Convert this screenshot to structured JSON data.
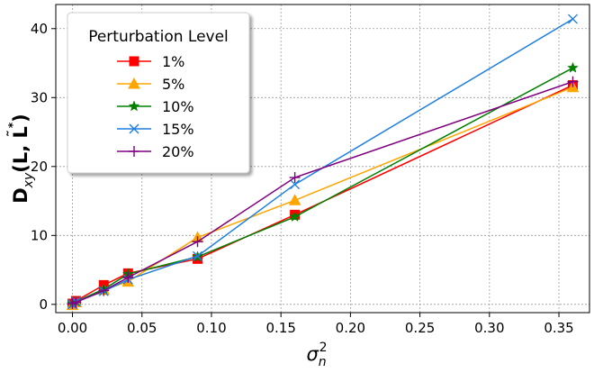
{
  "chart_data": {
    "type": "line",
    "title": "",
    "xlabel_base": "σ",
    "xlabel_sub": "n",
    "xlabel_sup": "2",
    "ylabel_parts": [
      "D",
      "xy",
      "(L, ",
      "L",
      "˜",
      "*",
      ")"
    ],
    "xlim": [
      -0.012,
      0.372
    ],
    "ylim": [
      -1.2,
      43.5
    ],
    "x_ticks": [
      0.0,
      0.05,
      0.1,
      0.15,
      0.2,
      0.25,
      0.3,
      0.35
    ],
    "x_tick_labels": [
      "0.00",
      "0.05",
      "0.10",
      "0.15",
      "0.20",
      "0.25",
      "0.30",
      "0.35"
    ],
    "y_ticks": [
      0,
      10,
      20,
      30,
      40
    ],
    "y_tick_labels": [
      "0",
      "10",
      "20",
      "30",
      "40"
    ],
    "grid": true,
    "legend": {
      "title": "Perturbation Level",
      "placement": "top-left"
    },
    "series": [
      {
        "name": "1%",
        "color": "#ff0000",
        "marker": "square",
        "x": [
          0.0,
          0.0025,
          0.0225,
          0.04,
          0.09,
          0.16,
          0.36
        ],
        "y": [
          0.1,
          0.5,
          2.8,
          4.5,
          6.6,
          13.0,
          31.8
        ]
      },
      {
        "name": "5%",
        "color": "#ffa500",
        "marker": "triangle",
        "x": [
          0.0,
          0.0025,
          0.0225,
          0.04,
          0.09,
          0.16,
          0.36
        ],
        "y": [
          -0.1,
          0.3,
          2.1,
          3.3,
          9.7,
          15.1,
          31.5
        ]
      },
      {
        "name": "10%",
        "color": "#008000",
        "marker": "star",
        "x": [
          0.0,
          0.0025,
          0.0225,
          0.04,
          0.09,
          0.16,
          0.36
        ],
        "y": [
          0.1,
          0.4,
          2.2,
          4.4,
          6.9,
          12.7,
          34.3
        ]
      },
      {
        "name": "15%",
        "color": "#1e7fe0",
        "marker": "x",
        "x": [
          0.0,
          0.0025,
          0.0225,
          0.04,
          0.09,
          0.16,
          0.36
        ],
        "y": [
          0.0,
          0.4,
          1.9,
          3.6,
          7.0,
          17.4,
          41.4
        ]
      },
      {
        "name": "20%",
        "color": "#800080",
        "marker": "plus",
        "x": [
          0.0,
          0.0025,
          0.0225,
          0.04,
          0.09,
          0.16,
          0.36
        ],
        "y": [
          0.1,
          0.3,
          2.0,
          3.9,
          9.1,
          18.4,
          32.3
        ]
      }
    ]
  }
}
